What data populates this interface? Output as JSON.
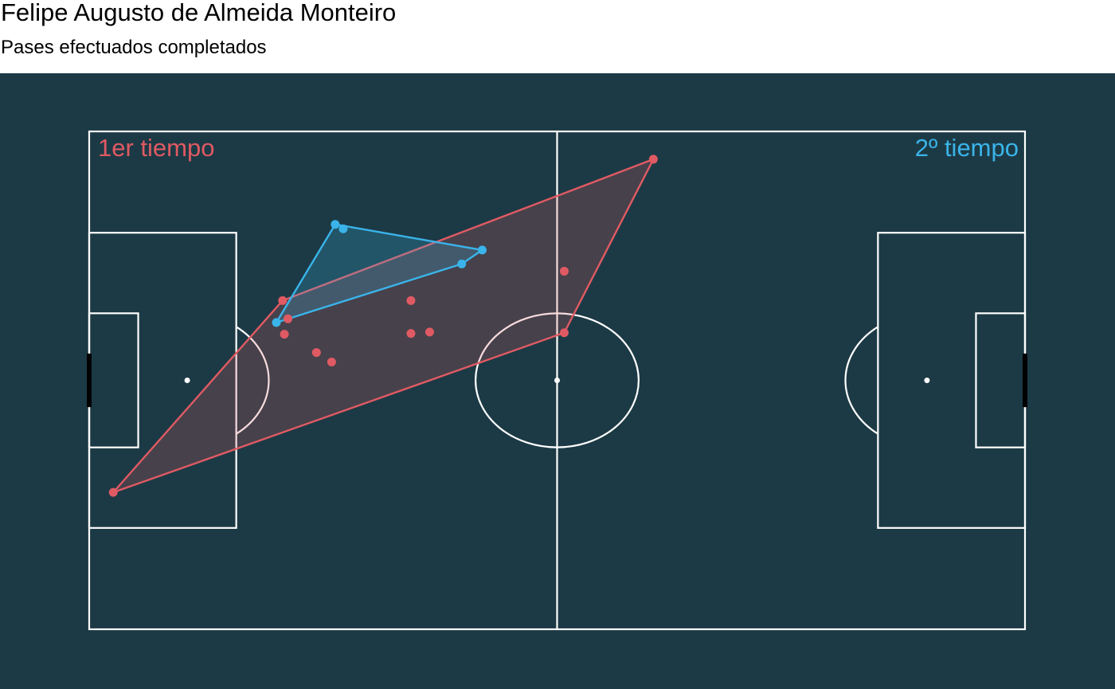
{
  "header": {
    "title": "Felipe Augusto de Almeida Monteiro",
    "subtitle": "Pases efectuados completados"
  },
  "colors": {
    "background": "#1c3a45",
    "pitch_lines": "#ffffff",
    "first_half": "#e05a63",
    "second_half": "#3ab4ea"
  },
  "chart_data": {
    "type": "scatter",
    "title": "Felipe Augusto de Almeida Monteiro",
    "subtitle": "Pases efectuados completados",
    "pitch": {
      "length": 105,
      "width": 68
    },
    "xlim": [
      0,
      105
    ],
    "ylim": [
      0,
      68
    ],
    "series": [
      {
        "name": "1er tiempo",
        "color": "#e05a63",
        "hull": true,
        "points": [
          [
            63.3,
            64.2
          ],
          [
            53.3,
            40.5
          ],
          [
            2.7,
            18.7
          ],
          [
            21.7,
            44.9
          ],
          [
            22.3,
            42.4
          ],
          [
            21.9,
            40.3
          ],
          [
            36.1,
            44.9
          ],
          [
            38.2,
            40.6
          ],
          [
            36.1,
            40.4
          ],
          [
            25.5,
            37.8
          ],
          [
            27.2,
            36.5
          ],
          [
            53.3,
            48.9
          ]
        ]
      },
      {
        "name": "2º tiempo",
        "color": "#3ab4ea",
        "hull": true,
        "points": [
          [
            27.6,
            55.3
          ],
          [
            28.5,
            54.7
          ],
          [
            44.1,
            51.8
          ],
          [
            41.8,
            49.9
          ],
          [
            21.0,
            41.9
          ]
        ]
      }
    ]
  }
}
